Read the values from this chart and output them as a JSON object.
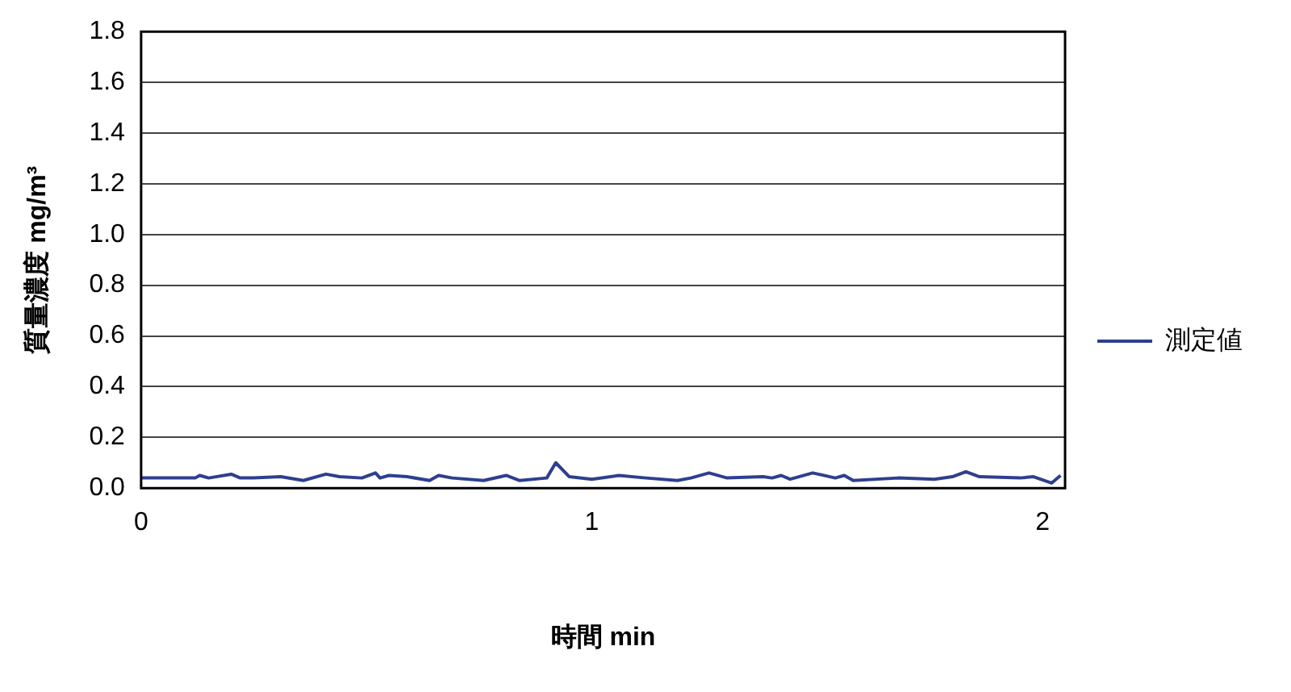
{
  "chart_data": {
    "type": "line",
    "xlabel": "時間 min",
    "ylabel": "質量濃度 mg/m³",
    "xlim": [
      0,
      2.05
    ],
    "xticks": [
      0,
      1,
      2
    ],
    "ylim": [
      0,
      1.8
    ],
    "yticks": [
      {
        "value": 0,
        "label": "0.0"
      },
      0.2,
      0.4,
      0.6,
      0.8,
      {
        "value": 1,
        "label": "1.0"
      },
      1.2,
      1.4,
      1.6,
      1.8
    ],
    "grid": "y",
    "legend": "right",
    "marker": "none",
    "line_style": "solid",
    "series": [
      {
        "name": "測定値",
        "color": "#2e3f8f",
        "x": [
          0,
          0.02,
          0.12,
          0.13,
          0.15,
          0.2,
          0.22,
          0.25,
          0.31,
          0.36,
          0.41,
          0.44,
          0.49,
          0.52,
          0.53,
          0.55,
          0.59,
          0.64,
          0.66,
          0.69,
          0.76,
          0.81,
          0.84,
          0.9,
          0.92,
          0.95,
          1.0,
          1.06,
          1.12,
          1.19,
          1.22,
          1.26,
          1.3,
          1.38,
          1.4,
          1.42,
          1.44,
          1.49,
          1.54,
          1.56,
          1.58,
          1.68,
          1.76,
          1.8,
          1.83,
          1.86,
          1.95,
          1.98,
          2.02,
          2.04
        ],
        "values": [
          0.04,
          0.04,
          0.04,
          0.05,
          0.04,
          0.055,
          0.04,
          0.04,
          0.045,
          0.03,
          0.055,
          0.045,
          0.04,
          0.06,
          0.04,
          0.05,
          0.045,
          0.03,
          0.05,
          0.04,
          0.03,
          0.05,
          0.03,
          0.04,
          0.1,
          0.045,
          0.035,
          0.05,
          0.04,
          0.03,
          0.04,
          0.06,
          0.04,
          0.045,
          0.04,
          0.05,
          0.035,
          0.06,
          0.04,
          0.05,
          0.03,
          0.04,
          0.035,
          0.045,
          0.065,
          0.045,
          0.04,
          0.045,
          0.02,
          0.05
        ]
      }
    ]
  }
}
